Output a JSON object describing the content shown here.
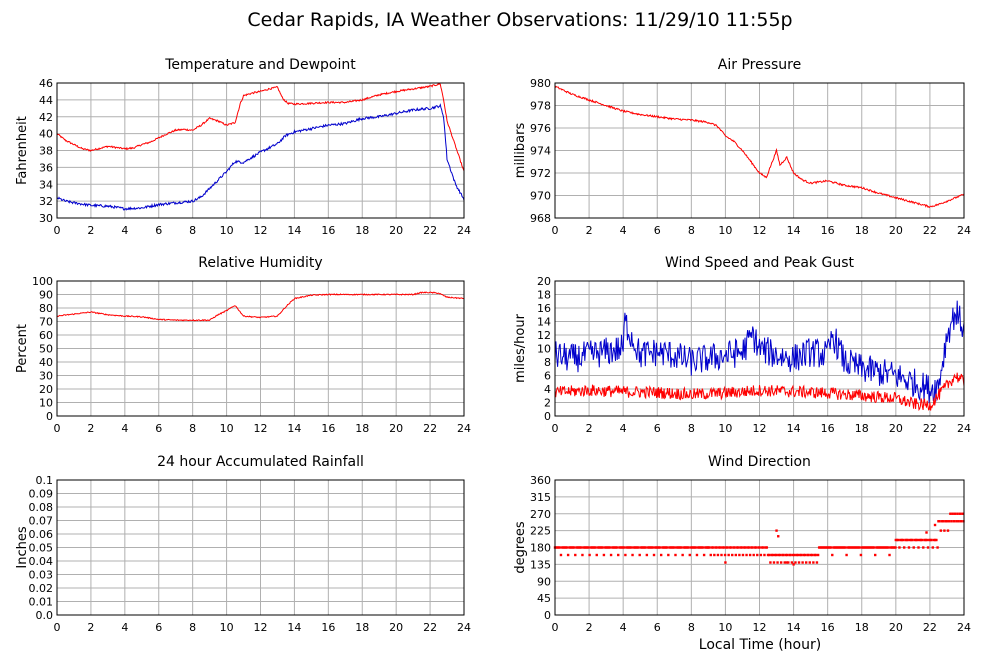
{
  "page": {
    "title": "Cedar Rapids, IA Weather Observations: 11/29/10 11:55p",
    "xlabel": "Local Time (hour)"
  },
  "colors": {
    "primary": "#ff0000",
    "secondary": "#0000cc",
    "grid": "#b0b0b0"
  },
  "chart_data": [
    {
      "id": "temp",
      "type": "line",
      "title": "Temperature and Dewpoint",
      "xlabel": "",
      "ylabel": "Fahrenheit",
      "xlim": [
        0,
        24
      ],
      "ylim": [
        30,
        46
      ],
      "xticks": [
        0,
        2,
        4,
        6,
        8,
        10,
        12,
        14,
        16,
        18,
        20,
        22,
        24
      ],
      "yticks": [
        30,
        32,
        34,
        36,
        38,
        40,
        42,
        44,
        46
      ],
      "grid": true,
      "series": [
        {
          "color": "#ff0000",
          "noise": 0.1,
          "points": [
            [
              0,
              40
            ],
            [
              0.5,
              39.2
            ],
            [
              1,
              38.7
            ],
            [
              1.5,
              38.2
            ],
            [
              2,
              38.0
            ],
            [
              3,
              38.5
            ],
            [
              4,
              38.2
            ],
            [
              4.5,
              38.3
            ],
            [
              5,
              38.7
            ],
            [
              5.5,
              39.0
            ],
            [
              6,
              39.5
            ],
            [
              6.5,
              40.0
            ],
            [
              7,
              40.4
            ],
            [
              7.5,
              40.5
            ],
            [
              8,
              40.4
            ],
            [
              8.5,
              41.0
            ],
            [
              9,
              41.8
            ],
            [
              9.5,
              41.5
            ],
            [
              10,
              41.0
            ],
            [
              10.5,
              41.3
            ],
            [
              10.8,
              43.5
            ],
            [
              11,
              44.5
            ],
            [
              11.5,
              44.8
            ],
            [
              12,
              45.0
            ],
            [
              12.5,
              45.3
            ],
            [
              13,
              45.5
            ],
            [
              13.3,
              44.2
            ],
            [
              13.6,
              43.6
            ],
            [
              14,
              43.5
            ],
            [
              15,
              43.6
            ],
            [
              16,
              43.7
            ],
            [
              17,
              43.7
            ],
            [
              18,
              44.0
            ],
            [
              19,
              44.6
            ],
            [
              20,
              45.0
            ],
            [
              21,
              45.3
            ],
            [
              22,
              45.6
            ],
            [
              22.6,
              45.9
            ],
            [
              22.8,
              44.0
            ],
            [
              23,
              41.5
            ],
            [
              23.5,
              38.5
            ],
            [
              24,
              35.5
            ]
          ]
        },
        {
          "color": "#0000cc",
          "noise": 0.15,
          "points": [
            [
              0,
              32.4
            ],
            [
              0.5,
              32.0
            ],
            [
              1,
              31.8
            ],
            [
              2,
              31.5
            ],
            [
              3,
              31.4
            ],
            [
              4,
              31.1
            ],
            [
              5,
              31.2
            ],
            [
              6,
              31.6
            ],
            [
              7,
              31.8
            ],
            [
              8,
              32.0
            ],
            [
              8.5,
              32.5
            ],
            [
              9,
              33.5
            ],
            [
              9.5,
              34.5
            ],
            [
              10,
              35.5
            ],
            [
              10.5,
              36.7
            ],
            [
              11,
              36.6
            ],
            [
              11.5,
              37.2
            ],
            [
              12,
              37.8
            ],
            [
              12.5,
              38.3
            ],
            [
              13,
              38.8
            ],
            [
              13.5,
              39.8
            ],
            [
              14,
              40.2
            ],
            [
              15,
              40.6
            ],
            [
              16,
              41.0
            ],
            [
              17,
              41.2
            ],
            [
              18,
              41.8
            ],
            [
              19,
              42.0
            ],
            [
              20,
              42.4
            ],
            [
              21,
              42.8
            ],
            [
              22,
              43.0
            ],
            [
              22.6,
              43.3
            ],
            [
              22.8,
              42.0
            ],
            [
              23,
              37.0
            ],
            [
              23.5,
              34.0
            ],
            [
              24,
              32.2
            ]
          ]
        }
      ]
    },
    {
      "id": "pressure",
      "type": "line",
      "title": "Air Pressure",
      "xlabel": "",
      "ylabel": "millibars",
      "xlim": [
        0,
        24
      ],
      "ylim": [
        968,
        980
      ],
      "xticks": [
        0,
        2,
        4,
        6,
        8,
        10,
        12,
        14,
        16,
        18,
        20,
        22,
        24
      ],
      "yticks": [
        968,
        970,
        972,
        974,
        976,
        978,
        980
      ],
      "grid": true,
      "series": [
        {
          "color": "#ff0000",
          "noise": 0.08,
          "points": [
            [
              0,
              979.7
            ],
            [
              1,
              979.0
            ],
            [
              2,
              978.5
            ],
            [
              3,
              978.0
            ],
            [
              4,
              977.5
            ],
            [
              5,
              977.2
            ],
            [
              6,
              977.0
            ],
            [
              7,
              976.8
            ],
            [
              8,
              976.7
            ],
            [
              9,
              976.5
            ],
            [
              9.5,
              976.2
            ],
            [
              10,
              975.3
            ],
            [
              10.5,
              974.8
            ],
            [
              11,
              974.0
            ],
            [
              11.5,
              973.0
            ],
            [
              12,
              972.0
            ],
            [
              12.4,
              971.6
            ],
            [
              12.7,
              972.8
            ],
            [
              13,
              974.0
            ],
            [
              13.2,
              972.7
            ],
            [
              13.6,
              973.4
            ],
            [
              14,
              972.0
            ],
            [
              14.5,
              971.4
            ],
            [
              15,
              971.1
            ],
            [
              16,
              971.3
            ],
            [
              17,
              970.9
            ],
            [
              18,
              970.7
            ],
            [
              19,
              970.2
            ],
            [
              20,
              969.8
            ],
            [
              21,
              969.4
            ],
            [
              22,
              969.0
            ],
            [
              22.5,
              969.2
            ],
            [
              23,
              969.5
            ],
            [
              24,
              970.1
            ]
          ]
        }
      ]
    },
    {
      "id": "humidity",
      "type": "line",
      "title": "Relative Humidity",
      "xlabel": "",
      "ylabel": "Percent",
      "xlim": [
        0,
        24
      ],
      "ylim": [
        0,
        100
      ],
      "xticks": [
        0,
        2,
        4,
        6,
        8,
        10,
        12,
        14,
        16,
        18,
        20,
        22,
        24
      ],
      "yticks": [
        0,
        10,
        20,
        30,
        40,
        50,
        60,
        70,
        80,
        90,
        100
      ],
      "grid": true,
      "series": [
        {
          "color": "#ff0000",
          "noise": 0.4,
          "points": [
            [
              0,
              74
            ],
            [
              1,
              75.5
            ],
            [
              2,
              77
            ],
            [
              3,
              75
            ],
            [
              4,
              74
            ],
            [
              5,
              73.5
            ],
            [
              6,
              71.5
            ],
            [
              7,
              71
            ],
            [
              8,
              71
            ],
            [
              9,
              71
            ],
            [
              9.5,
              75
            ],
            [
              10,
              78
            ],
            [
              10.5,
              82
            ],
            [
              11,
              74
            ],
            [
              12,
              73
            ],
            [
              13,
              74
            ],
            [
              13.5,
              81
            ],
            [
              14,
              87
            ],
            [
              15,
              89.5
            ],
            [
              16,
              90
            ],
            [
              17,
              90
            ],
            [
              18,
              90
            ],
            [
              19,
              90
            ],
            [
              20,
              90
            ],
            [
              21,
              90
            ],
            [
              21.5,
              91.5
            ],
            [
              22,
              91.5
            ],
            [
              22.5,
              91
            ],
            [
              23,
              88
            ],
            [
              24,
              87
            ]
          ]
        }
      ]
    },
    {
      "id": "wind",
      "type": "line",
      "title": "Wind Speed and Peak Gust",
      "xlabel": "",
      "ylabel": "miles/hour",
      "xlim": [
        0,
        24
      ],
      "ylim": [
        0,
        20
      ],
      "xticks": [
        0,
        2,
        4,
        6,
        8,
        10,
        12,
        14,
        16,
        18,
        20,
        22,
        24
      ],
      "yticks": [
        0,
        2,
        4,
        6,
        8,
        10,
        12,
        14,
        16,
        18,
        20
      ],
      "grid": true,
      "series": [
        {
          "color": "#0000cc",
          "noise": 2.2,
          "points": [
            [
              0,
              9
            ],
            [
              1,
              8.5
            ],
            [
              2,
              9
            ],
            [
              3,
              9.5
            ],
            [
              4,
              10
            ],
            [
              4.1,
              14
            ],
            [
              5,
              9
            ],
            [
              6,
              9.5
            ],
            [
              7,
              9
            ],
            [
              8,
              8
            ],
            [
              9,
              8.5
            ],
            [
              10,
              9
            ],
            [
              11,
              9.5
            ],
            [
              11.6,
              12
            ],
            [
              12,
              10
            ],
            [
              13,
              9
            ],
            [
              14,
              8.5
            ],
            [
              15,
              9.5
            ],
            [
              16,
              9
            ],
            [
              16.3,
              12
            ],
            [
              17,
              8
            ],
            [
              18,
              7
            ],
            [
              19,
              6.5
            ],
            [
              20,
              6
            ],
            [
              21,
              5
            ],
            [
              22,
              4
            ],
            [
              22.5,
              4.5
            ],
            [
              23,
              12
            ],
            [
              23.5,
              15.5
            ],
            [
              24,
              13
            ]
          ]
        },
        {
          "color": "#ff0000",
          "noise": 0.9,
          "points": [
            [
              0,
              3.5
            ],
            [
              2,
              3.8
            ],
            [
              4,
              3.6
            ],
            [
              6,
              3.5
            ],
            [
              8,
              3.2
            ],
            [
              10,
              3.4
            ],
            [
              12,
              3.8
            ],
            [
              14,
              3.6
            ],
            [
              16,
              3.4
            ],
            [
              18,
              3.0
            ],
            [
              20,
              2.6
            ],
            [
              21,
              1.8
            ],
            [
              22,
              1.6
            ],
            [
              23,
              4.5
            ],
            [
              23.5,
              6
            ],
            [
              24,
              5
            ]
          ]
        }
      ]
    },
    {
      "id": "rain",
      "type": "line",
      "title": "24 hour Accumulated Rainfall",
      "xlabel": "",
      "ylabel": "Inches",
      "xlim": [
        0,
        24
      ],
      "ylim": [
        0,
        0.1
      ],
      "xticks": [
        0,
        2,
        4,
        6,
        8,
        10,
        12,
        14,
        16,
        18,
        20,
        22,
        24
      ],
      "yticks": [
        0.0,
        0.01,
        0.02,
        0.03,
        0.04,
        0.05,
        0.06,
        0.07,
        0.08,
        0.09,
        0.1
      ],
      "ytick_labels": [
        "0.0",
        "0.01",
        "0.02",
        "0.03",
        "0.04",
        "0.05",
        "0.06",
        "0.07",
        "0.08",
        "0.09",
        "0.1"
      ],
      "grid": true,
      "series": [
        {
          "color": "#ff0000",
          "noise": 0,
          "points": [
            [
              0,
              0
            ],
            [
              24,
              0
            ]
          ]
        }
      ]
    },
    {
      "id": "direction",
      "type": "scatter",
      "title": "Wind Direction",
      "xlabel": "Local Time (hour)",
      "ylabel": "degrees",
      "xlim": [
        0,
        24
      ],
      "ylim": [
        0,
        360
      ],
      "xticks": [
        0,
        2,
        4,
        6,
        8,
        10,
        12,
        14,
        16,
        18,
        20,
        22,
        24
      ],
      "yticks": [
        0,
        45,
        90,
        135,
        180,
        225,
        270,
        315,
        360
      ],
      "grid": true,
      "series": [
        {
          "color": "#ff0000",
          "segments": [
            {
              "from": 0,
              "to": 9,
              "value": 180,
              "alt": 160,
              "alt_every": 6
            },
            {
              "from": 9,
              "to": 12.5,
              "value": 180,
              "alt": 160,
              "alt_every": 3
            },
            {
              "from": 12.5,
              "to": 15.5,
              "value": 160,
              "alt": 140,
              "alt_every": 3
            },
            {
              "from": 15.5,
              "to": 20,
              "value": 180,
              "alt": 160,
              "alt_every": 12
            },
            {
              "from": 20,
              "to": 22.5,
              "value": 200,
              "alt": 180,
              "alt_every": 4
            },
            {
              "from": 22.5,
              "to": 23.2,
              "value": 250,
              "alt": 225,
              "alt_every": 3
            },
            {
              "from": 23.2,
              "to": 24,
              "value": 270,
              "alt": 250,
              "alt_every": 2
            }
          ],
          "extra": [
            [
              13.0,
              225
            ],
            [
              13.1,
              210
            ],
            [
              10.0,
              140
            ],
            [
              13.6,
              140
            ],
            [
              14.0,
              135
            ],
            [
              22.3,
              240
            ],
            [
              21.8,
              220
            ]
          ]
        }
      ]
    }
  ]
}
